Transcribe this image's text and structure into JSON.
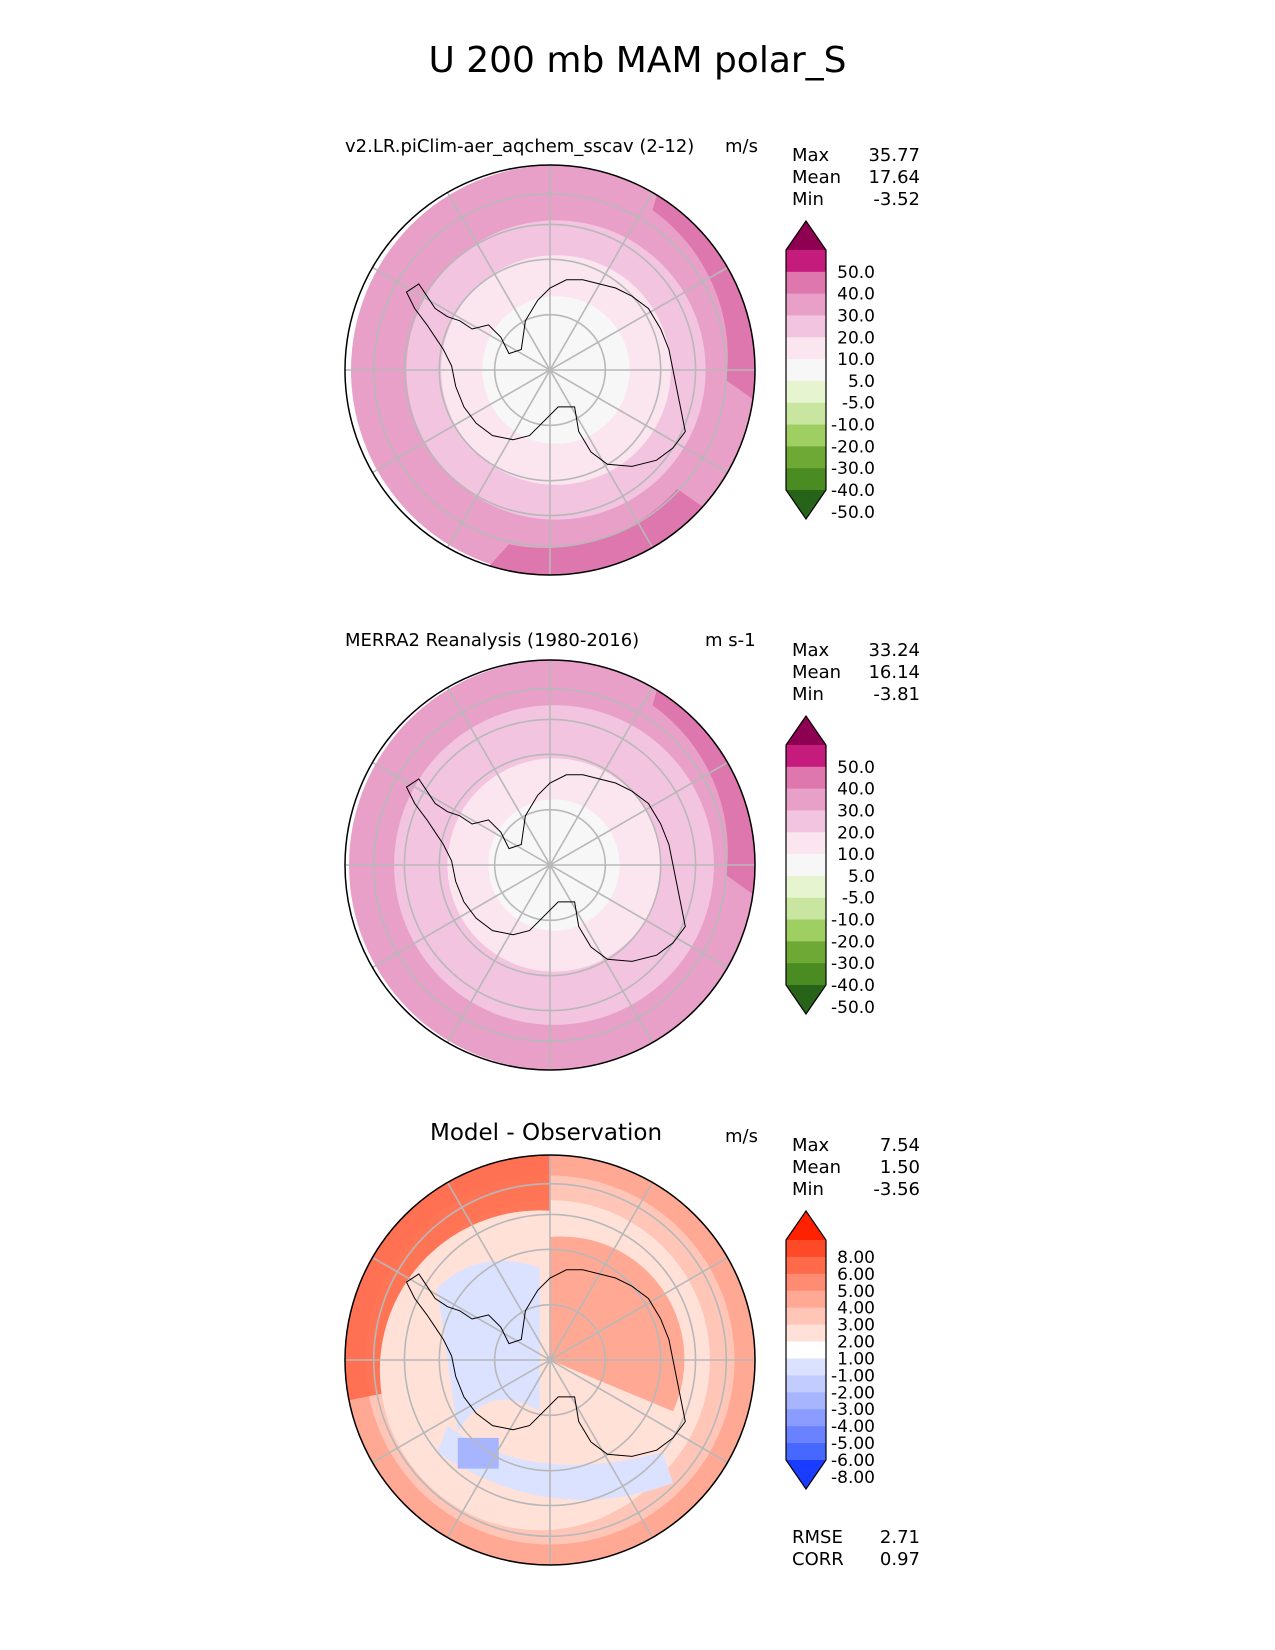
{
  "title": "U 200 mb MAM polar_S",
  "panels": [
    {
      "id": "model",
      "title": "v2.LR.piClim-aer_aqchem_sscav (2-12)",
      "units": "m/s",
      "stats": [
        {
          "label": "Max",
          "value": "35.77"
        },
        {
          "label": "Mean",
          "value": "17.64"
        },
        {
          "label": "Min",
          "value": "-3.52"
        }
      ]
    },
    {
      "id": "obs",
      "title": "MERRA2 Reanalysis (1980-2016)",
      "units": "m s-1",
      "stats": [
        {
          "label": "Max",
          "value": "33.24"
        },
        {
          "label": "Mean",
          "value": "16.14"
        },
        {
          "label": "Min",
          "value": "-3.81"
        }
      ]
    },
    {
      "id": "diff",
      "title": "Model - Observation",
      "units": "m/s",
      "stats": [
        {
          "label": "Max",
          "value": "7.54"
        },
        {
          "label": "Mean",
          "value": "1.50"
        },
        {
          "label": "Min",
          "value": "-3.56"
        }
      ],
      "extra_stats": [
        {
          "label": "RMSE",
          "value": "2.71"
        },
        {
          "label": "CORR",
          "value": "0.97"
        }
      ]
    }
  ],
  "chart_data": [
    {
      "type": "heatmap",
      "title": "v2.LR.piClim-aer_aqchem_sscav (2-12)",
      "projection": "south polar stereographic",
      "units": "m/s",
      "colorbar_levels": [
        "50.0",
        "40.0",
        "30.0",
        "20.0",
        "10.0",
        "5.0",
        "-5.0",
        "-10.0",
        "-20.0",
        "-30.0",
        "-40.0",
        "-50.0"
      ],
      "colorbar_colors": [
        "#8e0152",
        "#c51b7d",
        "#de77ae",
        "#e8a0c8",
        "#f2c4e0",
        "#fbe6f0",
        "#f7f7f7",
        "#e6f5d0",
        "#c8e6a0",
        "#9fcf63",
        "#6ea936",
        "#4a8b22",
        "#276419"
      ],
      "zonal_rings": [
        {
          "r": 0.36,
          "level_index": 6
        },
        {
          "r": 0.56,
          "level_index": 5
        },
        {
          "r": 0.73,
          "level_index": 4
        },
        {
          "r": 0.88,
          "level_index": 3
        },
        {
          "r": 1.0,
          "level_index": 3
        }
      ]
    },
    {
      "type": "heatmap",
      "title": "MERRA2 Reanalysis (1980-2016)",
      "projection": "south polar stereographic",
      "units": "m s-1",
      "colorbar_levels": [
        "50.0",
        "40.0",
        "30.0",
        "20.0",
        "10.0",
        "5.0",
        "-5.0",
        "-10.0",
        "-20.0",
        "-30.0",
        "-40.0",
        "-50.0"
      ],
      "colorbar_colors": [
        "#8e0152",
        "#c51b7d",
        "#de77ae",
        "#e8a0c8",
        "#f2c4e0",
        "#fbe6f0",
        "#f7f7f7",
        "#e6f5d0",
        "#c8e6a0",
        "#9fcf63",
        "#6ea936",
        "#4a8b22",
        "#276419"
      ],
      "zonal_rings": [
        {
          "r": 0.32,
          "level_index": 6
        },
        {
          "r": 0.52,
          "level_index": 5
        },
        {
          "r": 0.78,
          "level_index": 4
        },
        {
          "r": 1.0,
          "level_index": 3
        }
      ]
    },
    {
      "type": "heatmap",
      "title": "Model - Observation",
      "projection": "south polar stereographic",
      "units": "m/s",
      "colorbar_levels": [
        "8.00",
        "6.00",
        "5.00",
        "4.00",
        "3.00",
        "2.00",
        "1.00",
        "-1.00",
        "-2.00",
        "-3.00",
        "-4.00",
        "-5.00",
        "-6.00",
        "-8.00"
      ],
      "colorbar_colors": [
        "#ff2200",
        "#ff4a28",
        "#ff6a4a",
        "#ff8b72",
        "#ffa894",
        "#ffc6b8",
        "#ffe1d8",
        "#ffffff",
        "#dbe2ff",
        "#c2ccff",
        "#a7b5ff",
        "#8a9cff",
        "#6a82ff",
        "#4768ff",
        "#1a3cff"
      ]
    }
  ]
}
